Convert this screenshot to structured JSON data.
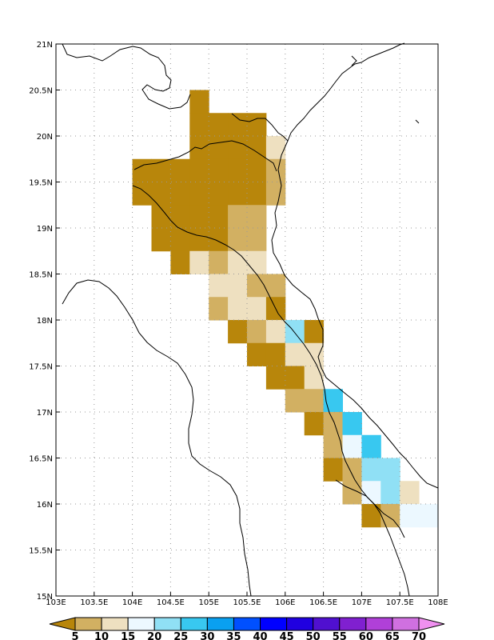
{
  "map": {
    "lon_range": [
      103,
      108
    ],
    "lat_range": [
      15,
      21
    ],
    "grid_step_deg": 0.25,
    "lon_ticks": [
      "103E",
      "103.5E",
      "104E",
      "104.5E",
      "105E",
      "105.5E",
      "106E",
      "106.5E",
      "107E",
      "107.5E",
      "108E"
    ],
    "lat_ticks": [
      "15N",
      "15.5N",
      "16N",
      "16.5N",
      "17N",
      "17.5N",
      "18N",
      "18.5N",
      "19N",
      "19.5N",
      "20N",
      "20.5N",
      "21N"
    ],
    "gridlines": "dotted",
    "coastline_color": "#000000"
  },
  "colorbar": {
    "levels": [
      "5",
      "10",
      "15",
      "20",
      "25",
      "30",
      "35",
      "40",
      "45",
      "50",
      "55",
      "60",
      "65",
      "70"
    ],
    "colors": [
      "#b8860b",
      "#d2b062",
      "#eee0c0",
      "#ecf8ff",
      "#90e0f5",
      "#38c8f0",
      "#0aa0f0",
      "#0050ff",
      "#0000ff",
      "#2000e0",
      "#5010d0",
      "#8020d0",
      "#b040d8",
      "#d070e0",
      "#f090f0"
    ],
    "extend": "both"
  },
  "cells": [
    {
      "lon": 104.875,
      "lat": 20.375,
      "level": 0
    },
    {
      "lon": 104.875,
      "lat": 20.125,
      "level": 0
    },
    {
      "lon": 105.125,
      "lat": 20.125,
      "level": 0
    },
    {
      "lon": 105.375,
      "lat": 20.125,
      "level": 0
    },
    {
      "lon": 105.625,
      "lat": 20.125,
      "level": 0
    },
    {
      "lon": 104.875,
      "lat": 19.875,
      "level": 0
    },
    {
      "lon": 105.125,
      "lat": 19.875,
      "level": 0
    },
    {
      "lon": 105.375,
      "lat": 19.875,
      "level": 0
    },
    {
      "lon": 105.625,
      "lat": 19.875,
      "level": 0
    },
    {
      "lon": 105.875,
      "lat": 19.875,
      "level": 2
    },
    {
      "lon": 104.125,
      "lat": 19.625,
      "level": 0
    },
    {
      "lon": 104.375,
      "lat": 19.625,
      "level": 0
    },
    {
      "lon": 104.625,
      "lat": 19.625,
      "level": 0
    },
    {
      "lon": 104.875,
      "lat": 19.625,
      "level": 0
    },
    {
      "lon": 105.125,
      "lat": 19.625,
      "level": 0
    },
    {
      "lon": 105.375,
      "lat": 19.625,
      "level": 0
    },
    {
      "lon": 105.625,
      "lat": 19.625,
      "level": 0
    },
    {
      "lon": 105.875,
      "lat": 19.625,
      "level": 1
    },
    {
      "lon": 104.125,
      "lat": 19.375,
      "level": 0
    },
    {
      "lon": 104.375,
      "lat": 19.375,
      "level": 0
    },
    {
      "lon": 104.625,
      "lat": 19.375,
      "level": 0
    },
    {
      "lon": 104.875,
      "lat": 19.375,
      "level": 0
    },
    {
      "lon": 105.125,
      "lat": 19.375,
      "level": 0
    },
    {
      "lon": 105.375,
      "lat": 19.375,
      "level": 0
    },
    {
      "lon": 105.625,
      "lat": 19.375,
      "level": 0
    },
    {
      "lon": 105.875,
      "lat": 19.375,
      "level": 1
    },
    {
      "lon": 104.375,
      "lat": 19.125,
      "level": 0
    },
    {
      "lon": 104.625,
      "lat": 19.125,
      "level": 0
    },
    {
      "lon": 104.875,
      "lat": 19.125,
      "level": 0
    },
    {
      "lon": 105.125,
      "lat": 19.125,
      "level": 0
    },
    {
      "lon": 105.375,
      "lat": 19.125,
      "level": 1
    },
    {
      "lon": 105.625,
      "lat": 19.125,
      "level": 1
    },
    {
      "lon": 104.375,
      "lat": 18.875,
      "level": 0
    },
    {
      "lon": 104.625,
      "lat": 18.875,
      "level": 0
    },
    {
      "lon": 104.875,
      "lat": 18.875,
      "level": 0
    },
    {
      "lon": 105.125,
      "lat": 18.875,
      "level": 0
    },
    {
      "lon": 105.375,
      "lat": 18.875,
      "level": 1
    },
    {
      "lon": 105.625,
      "lat": 18.875,
      "level": 1
    },
    {
      "lon": 104.625,
      "lat": 18.625,
      "level": 0
    },
    {
      "lon": 104.875,
      "lat": 18.625,
      "level": 2
    },
    {
      "lon": 105.125,
      "lat": 18.625,
      "level": 1
    },
    {
      "lon": 105.375,
      "lat": 18.625,
      "level": 2
    },
    {
      "lon": 105.625,
      "lat": 18.625,
      "level": 2
    },
    {
      "lon": 105.125,
      "lat": 18.375,
      "level": 2
    },
    {
      "lon": 105.375,
      "lat": 18.375,
      "level": 2
    },
    {
      "lon": 105.625,
      "lat": 18.375,
      "level": 1
    },
    {
      "lon": 105.875,
      "lat": 18.375,
      "level": 1
    },
    {
      "lon": 105.125,
      "lat": 18.125,
      "level": 1
    },
    {
      "lon": 105.375,
      "lat": 18.125,
      "level": 2
    },
    {
      "lon": 105.625,
      "lat": 18.125,
      "level": 2
    },
    {
      "lon": 105.875,
      "lat": 18.125,
      "level": 0
    },
    {
      "lon": 105.375,
      "lat": 17.875,
      "level": 0
    },
    {
      "lon": 105.625,
      "lat": 17.875,
      "level": 1
    },
    {
      "lon": 105.875,
      "lat": 17.875,
      "level": 2
    },
    {
      "lon": 106.125,
      "lat": 17.875,
      "level": 4
    },
    {
      "lon": 106.375,
      "lat": 17.875,
      "level": 0
    },
    {
      "lon": 105.625,
      "lat": 17.625,
      "level": 0
    },
    {
      "lon": 105.875,
      "lat": 17.625,
      "level": 0
    },
    {
      "lon": 106.125,
      "lat": 17.625,
      "level": 2
    },
    {
      "lon": 106.375,
      "lat": 17.625,
      "level": 2
    },
    {
      "lon": 105.875,
      "lat": 17.375,
      "level": 0
    },
    {
      "lon": 106.125,
      "lat": 17.375,
      "level": 0
    },
    {
      "lon": 106.375,
      "lat": 17.375,
      "level": 2
    },
    {
      "lon": 106.125,
      "lat": 17.125,
      "level": 1
    },
    {
      "lon": 106.375,
      "lat": 17.125,
      "level": 1
    },
    {
      "lon": 106.625,
      "lat": 17.125,
      "level": 5
    },
    {
      "lon": 106.375,
      "lat": 16.875,
      "level": 0
    },
    {
      "lon": 106.625,
      "lat": 16.875,
      "level": 1
    },
    {
      "lon": 106.875,
      "lat": 16.875,
      "level": 5
    },
    {
      "lon": 106.625,
      "lat": 16.625,
      "level": 1
    },
    {
      "lon": 106.875,
      "lat": 16.625,
      "level": 3
    },
    {
      "lon": 107.125,
      "lat": 16.625,
      "level": 5
    },
    {
      "lon": 106.625,
      "lat": 16.375,
      "level": 0
    },
    {
      "lon": 106.875,
      "lat": 16.375,
      "level": 1
    },
    {
      "lon": 107.125,
      "lat": 16.375,
      "level": 4
    },
    {
      "lon": 107.375,
      "lat": 16.375,
      "level": 4
    },
    {
      "lon": 106.875,
      "lat": 16.125,
      "level": 1
    },
    {
      "lon": 107.125,
      "lat": 16.125,
      "level": 3
    },
    {
      "lon": 107.375,
      "lat": 16.125,
      "level": 4
    },
    {
      "lon": 107.625,
      "lat": 16.125,
      "level": 2
    },
    {
      "lon": 107.125,
      "lat": 15.875,
      "level": 0
    },
    {
      "lon": 107.375,
      "lat": 15.875,
      "level": 1
    },
    {
      "lon": 107.625,
      "lat": 15.875,
      "level": 3
    },
    {
      "lon": 107.875,
      "lat": 15.875,
      "level": 3
    }
  ]
}
